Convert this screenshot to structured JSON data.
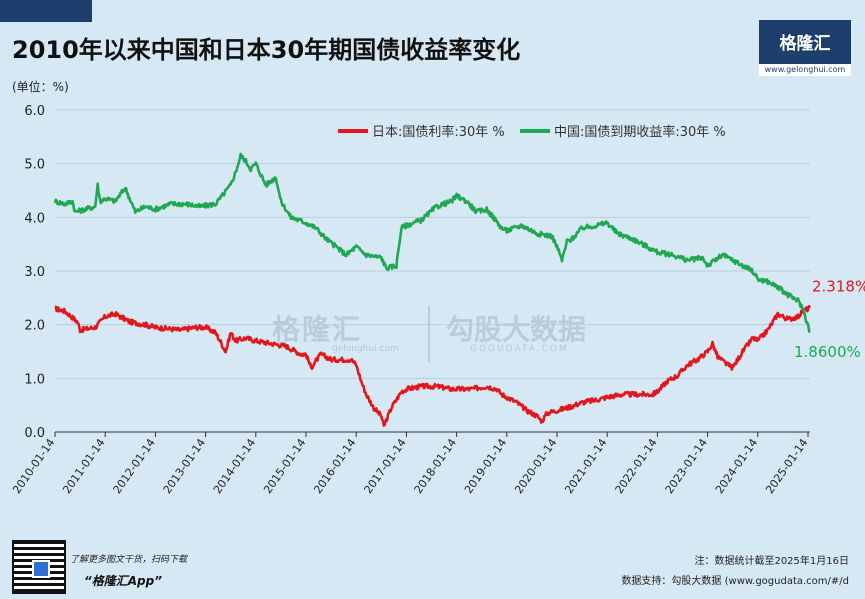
{
  "title": "2010年以来中国和日本30年期国债收益率变化",
  "unit_label": "(单位：%)",
  "logo": {
    "name": "格隆汇",
    "url": "www.gelonghui.com"
  },
  "watermark": {
    "left": "格隆汇",
    "left_sub": "gelonghui.com",
    "right": "勾股大数据",
    "right_sub": "GOGUDATA.COM"
  },
  "footer": {
    "promo": "了解更多图文干货，扫码下载",
    "app": "“格隆汇App”",
    "note": "注：数据统计截至2025年1月16日",
    "support": "数据支持：勾股大数据  (www.gogudata.com/#/d"
  },
  "colors": {
    "japan": "#e3161c",
    "china": "#1fa850",
    "grid": "#b9cedd",
    "background": "#d6e8f4"
  },
  "chart_data": {
    "type": "line",
    "ylim": [
      0,
      6
    ],
    "yticks": [
      "0.0",
      "1.0",
      "2.0",
      "3.0",
      "4.0",
      "5.0",
      "6.0"
    ],
    "xticks": [
      "2010-01-14",
      "2011-01-14",
      "2012-01-14",
      "2013-01-14",
      "2014-01-14",
      "2015-01-14",
      "2016-01-14",
      "2017-01-14",
      "2018-01-14",
      "2019-01-14",
      "2020-01-14",
      "2021-01-14",
      "2022-01-14",
      "2023-01-14",
      "2024-01-14",
      "2025-01-14"
    ],
    "legend": [
      "日本:国债利率:30年 %",
      "中国:国债到期收益率:30年 %"
    ],
    "end_labels": [
      "2.318%",
      "1.8600%"
    ],
    "series": [
      {
        "name": "日本:国债利率:30年 %",
        "x": [
          2010.0,
          2010.2,
          2010.45,
          2010.5,
          2010.8,
          2011.0,
          2011.2,
          2011.5,
          2011.8,
          2012.0,
          2012.3,
          2012.5,
          2012.8,
          2013.0,
          2013.2,
          2013.4,
          2013.5,
          2013.6,
          2013.8,
          2014.0,
          2014.3,
          2014.6,
          2014.9,
          2015.0,
          2015.1,
          2015.3,
          2015.5,
          2015.7,
          2015.9,
          2016.0,
          2016.1,
          2016.2,
          2016.35,
          2016.5,
          2016.55,
          2016.7,
          2016.9,
          2017.0,
          2017.3,
          2017.6,
          2017.9,
          2018.0,
          2018.3,
          2018.6,
          2018.8,
          2018.9,
          2019.0,
          2019.2,
          2019.4,
          2019.6,
          2019.7,
          2019.8,
          2020.0,
          2020.2,
          2020.5,
          2020.8,
          2021.0,
          2021.3,
          2021.6,
          2021.9,
          2022.0,
          2022.2,
          2022.4,
          2022.6,
          2022.8,
          2023.0,
          2023.1,
          2023.2,
          2023.4,
          2023.5,
          2023.7,
          2023.9,
          2024.0,
          2024.2,
          2024.4,
          2024.6,
          2024.8,
          2024.9,
          2025.04
        ],
        "y": [
          2.3,
          2.25,
          2.05,
          1.9,
          1.95,
          2.15,
          2.2,
          2.05,
          2.0,
          1.95,
          1.92,
          1.9,
          1.95,
          1.95,
          1.85,
          1.5,
          1.85,
          1.7,
          1.75,
          1.7,
          1.65,
          1.6,
          1.45,
          1.45,
          1.2,
          1.45,
          1.35,
          1.35,
          1.35,
          1.25,
          0.95,
          0.7,
          0.45,
          0.3,
          0.1,
          0.45,
          0.75,
          0.8,
          0.85,
          0.85,
          0.8,
          0.8,
          0.8,
          0.85,
          0.8,
          0.7,
          0.65,
          0.55,
          0.4,
          0.3,
          0.2,
          0.35,
          0.4,
          0.45,
          0.55,
          0.6,
          0.65,
          0.7,
          0.7,
          0.7,
          0.75,
          0.95,
          1.05,
          1.25,
          1.35,
          1.5,
          1.65,
          1.4,
          1.25,
          1.2,
          1.5,
          1.75,
          1.7,
          1.9,
          2.2,
          2.1,
          2.15,
          2.25,
          2.318
        ]
      },
      {
        "name": "中国:国债到期收益率:30年 %",
        "x": [
          2010.0,
          2010.2,
          2010.35,
          2010.4,
          2010.6,
          2010.8,
          2010.85,
          2010.9,
          2011.0,
          2011.2,
          2011.4,
          2011.6,
          2011.8,
          2012.0,
          2012.3,
          2012.6,
          2012.9,
          2013.2,
          2013.5,
          2013.6,
          2013.7,
          2013.8,
          2013.9,
          2014.0,
          2014.2,
          2014.4,
          2014.5,
          2014.7,
          2015.0,
          2015.2,
          2015.4,
          2015.6,
          2015.8,
          2016.0,
          2016.2,
          2016.5,
          2016.6,
          2016.8,
          2016.9,
          2017.0,
          2017.3,
          2017.6,
          2017.9,
          2018.0,
          2018.2,
          2018.4,
          2018.6,
          2018.9,
          2019.0,
          2019.3,
          2019.6,
          2019.9,
          2020.0,
          2020.1,
          2020.2,
          2020.3,
          2020.5,
          2020.8,
          2021.0,
          2021.2,
          2021.5,
          2021.8,
          2022.0,
          2022.3,
          2022.6,
          2022.9,
          2023.0,
          2023.3,
          2023.6,
          2023.9,
          2024.0,
          2024.2,
          2024.4,
          2024.6,
          2024.8,
          2024.9,
          2025.04
        ],
        "y": [
          4.3,
          4.25,
          4.3,
          4.1,
          4.15,
          4.2,
          4.6,
          4.3,
          4.35,
          4.3,
          4.55,
          4.1,
          4.2,
          4.15,
          4.25,
          4.25,
          4.2,
          4.25,
          4.6,
          4.85,
          5.15,
          5.05,
          4.9,
          5.0,
          4.6,
          4.75,
          4.3,
          4.0,
          3.9,
          3.8,
          3.6,
          3.45,
          3.3,
          3.45,
          3.3,
          3.25,
          3.05,
          3.1,
          3.8,
          3.85,
          3.95,
          4.2,
          4.3,
          4.4,
          4.3,
          4.1,
          4.15,
          3.8,
          3.75,
          3.85,
          3.7,
          3.65,
          3.45,
          3.2,
          3.55,
          3.6,
          3.8,
          3.85,
          3.9,
          3.7,
          3.6,
          3.45,
          3.35,
          3.3,
          3.2,
          3.25,
          3.1,
          3.3,
          3.15,
          3.0,
          2.85,
          2.8,
          2.7,
          2.55,
          2.45,
          2.3,
          1.86
        ]
      }
    ]
  }
}
